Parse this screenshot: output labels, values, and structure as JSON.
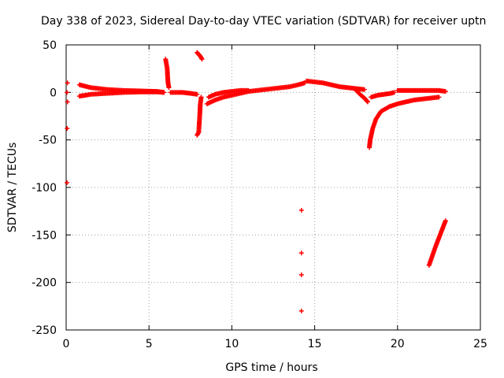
{
  "chart_data": {
    "type": "scatter",
    "title": "Day 338 of 2023, Sidereal Day-to-day VTEC variation (SDTVAR) for receiver uptn",
    "xlabel": "GPS time / hours",
    "ylabel": "SDTVAR / TECUs",
    "xlim": [
      0,
      25
    ],
    "ylim": [
      -250,
      50
    ],
    "xticks": [
      0,
      5,
      10,
      15,
      20,
      25
    ],
    "yticks": [
      -250,
      -200,
      -150,
      -100,
      -50,
      0,
      50
    ],
    "xtick_labels": [
      "0",
      "5",
      "10",
      "15",
      "20",
      "25"
    ],
    "ytick_labels": [
      "-250",
      "-200",
      "-150",
      "-100",
      "-50",
      "0",
      "50"
    ],
    "grid": true,
    "marker": "+",
    "color": "#ff0000",
    "series": [
      {
        "name": "outliers_start",
        "x": [
          0.05,
          0.08,
          0.08,
          0.06,
          0.05
        ],
        "y": [
          0,
          10,
          -10,
          -38,
          -95
        ]
      },
      {
        "name": "arc_1",
        "x": [
          0.8,
          1.5,
          2.5,
          3.5,
          4.5,
          5.5,
          5.9
        ],
        "y": [
          8,
          5,
          3,
          2,
          1.5,
          1,
          0
        ]
      },
      {
        "name": "arc_2",
        "x": [
          0.8,
          1.5,
          2.5,
          3.5,
          4.5,
          5.5,
          5.9
        ],
        "y": [
          -4,
          -2,
          -1,
          0,
          0.5,
          0.5,
          0
        ]
      },
      {
        "name": "arc_3",
        "x": [
          6.0,
          6.05,
          6.1,
          6.12,
          6.15,
          6.2
        ],
        "y": [
          35,
          30,
          25,
          18,
          10,
          5
        ]
      },
      {
        "name": "arc_4",
        "x": [
          6.3,
          7.0,
          7.5,
          7.9
        ],
        "y": [
          0,
          0,
          -1,
          -2
        ]
      },
      {
        "name": "arc_5",
        "x": [
          7.9,
          8.0,
          8.1,
          8.2
        ],
        "y": [
          42,
          40,
          38,
          35
        ]
      },
      {
        "name": "arc_6",
        "x": [
          7.9,
          8.0,
          8.05,
          8.1,
          8.15
        ],
        "y": [
          -45,
          -42,
          -28,
          -12,
          -5
        ]
      },
      {
        "name": "arc_7",
        "x": [
          8.5,
          9.0,
          9.5,
          10.0,
          10.5,
          11.0,
          11.5,
          12.0,
          12.5,
          13.0,
          13.5,
          14.0,
          14.4
        ],
        "y": [
          -12,
          -8,
          -5,
          -3,
          -1,
          1,
          2,
          3,
          4,
          5,
          6,
          8,
          10
        ]
      },
      {
        "name": "arc_8",
        "x": [
          8.6,
          9.0,
          9.5,
          10.0,
          10.5,
          11.0
        ],
        "y": [
          -5,
          -2,
          0,
          1,
          2,
          2
        ]
      },
      {
        "name": "outliers_mid",
        "x": [
          14.2,
          14.2,
          14.2,
          14.2
        ],
        "y": [
          -124,
          -169,
          -192,
          -230
        ]
      },
      {
        "name": "arc_9",
        "x": [
          14.5,
          15.0,
          15.5,
          16.0,
          16.5,
          17.0,
          17.5,
          18.0
        ],
        "y": [
          12,
          11,
          10,
          8,
          6,
          5,
          4,
          3
        ]
      },
      {
        "name": "arc_10",
        "x": [
          17.5,
          17.8,
          18.0,
          18.2
        ],
        "y": [
          2,
          -3,
          -6,
          -10
        ]
      },
      {
        "name": "arc_11",
        "x": [
          18.3,
          18.35,
          18.5,
          18.7,
          19.0,
          19.5,
          20.0,
          20.5,
          21.0,
          21.5,
          22.0,
          22.5
        ],
        "y": [
          -58,
          -50,
          -38,
          -28,
          -20,
          -15,
          -12,
          -10,
          -8,
          -7,
          -6,
          -5
        ]
      },
      {
        "name": "arc_12",
        "x": [
          18.4,
          18.8,
          19.2,
          19.6,
          19.8
        ],
        "y": [
          -5,
          -3,
          -2,
          -1,
          0
        ]
      },
      {
        "name": "arc_13",
        "x": [
          20.0,
          20.5,
          21.0,
          21.5,
          22.0,
          22.5,
          22.9
        ],
        "y": [
          2,
          2,
          2,
          2,
          2,
          2,
          1
        ]
      },
      {
        "name": "arc_14",
        "x": [
          21.9,
          22.1,
          22.3,
          22.5,
          22.7,
          22.9
        ],
        "y": [
          -182,
          -172,
          -162,
          -153,
          -144,
          -135
        ]
      }
    ]
  }
}
